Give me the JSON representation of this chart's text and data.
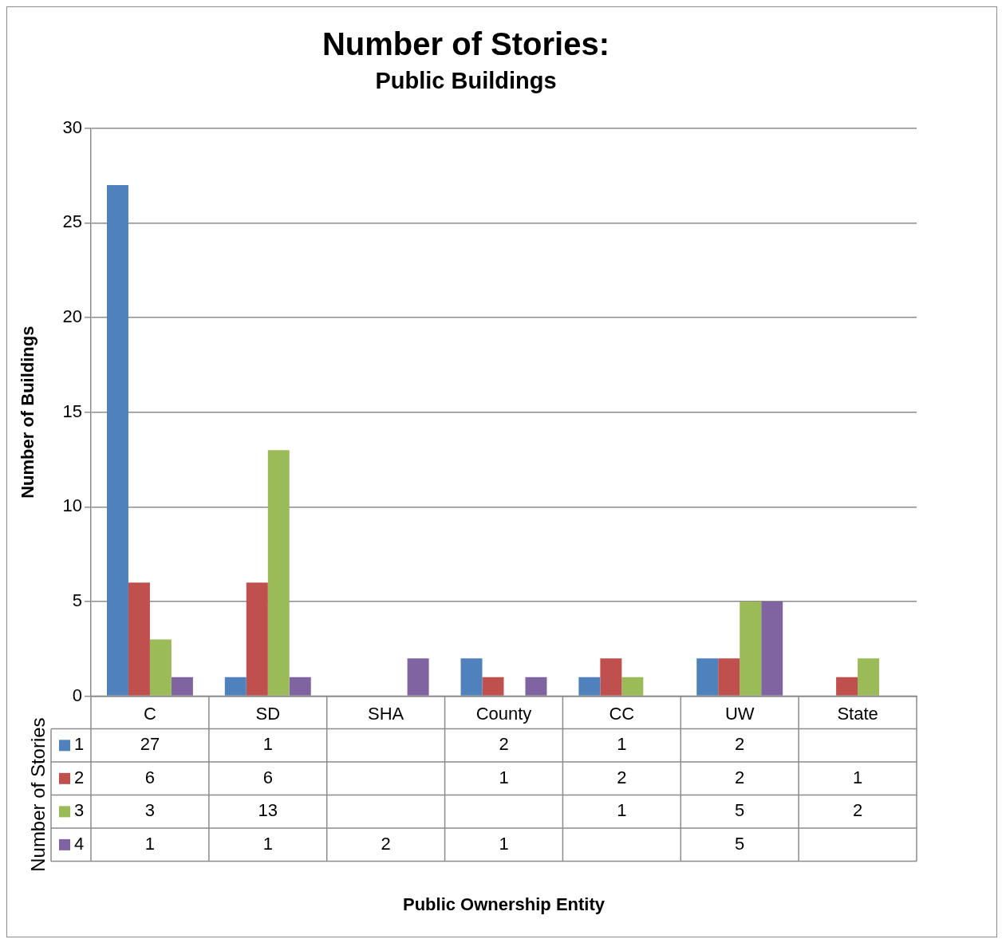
{
  "chart_data": {
    "type": "bar",
    "title": "Number of Stories:",
    "subtitle": "Public Buildings",
    "annotations": [
      "Public Ownership Entity"
    ],
    "ylabel": "Number of Buildings",
    "legend_title": "Number of Stories",
    "categories": [
      "C",
      "SD",
      "SHA",
      "County",
      "CC",
      "UW",
      "State"
    ],
    "series": [
      {
        "name": "1",
        "color": "#4f81bd",
        "values": [
          27,
          1,
          null,
          2,
          1,
          2,
          null
        ]
      },
      {
        "name": "2",
        "color": "#c0504d",
        "values": [
          6,
          6,
          null,
          1,
          2,
          2,
          1
        ]
      },
      {
        "name": "3",
        "color": "#9bbb59",
        "values": [
          3,
          13,
          null,
          null,
          1,
          5,
          2
        ]
      },
      {
        "name": "4",
        "color": "#8064a2",
        "values": [
          1,
          1,
          2,
          1,
          null,
          5,
          null
        ]
      }
    ],
    "ylim": [
      0,
      30
    ],
    "yticks": [
      0,
      5,
      10,
      15,
      20,
      25,
      30
    ],
    "grid": "y",
    "legend": "bottom",
    "data_labels": true
  }
}
